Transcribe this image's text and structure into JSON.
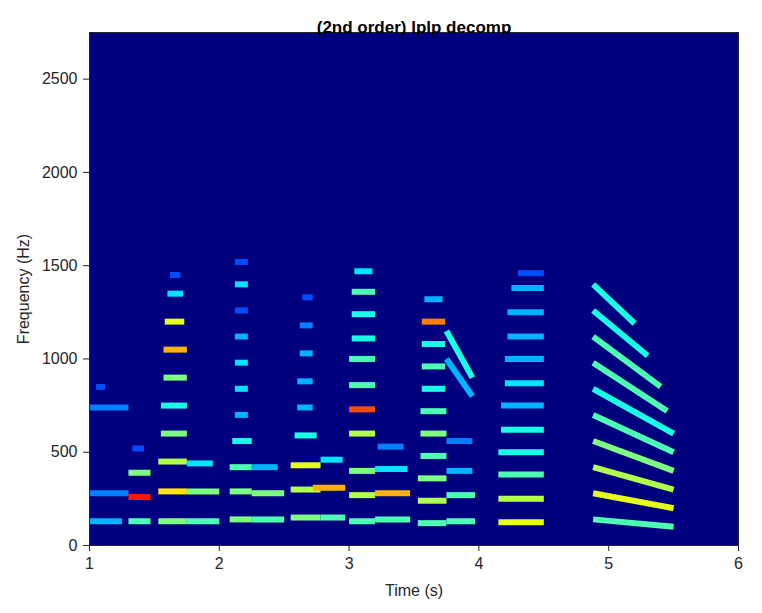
{
  "chart_data": {
    "type": "heatmap",
    "title": "(2nd order) lplp decomp",
    "xlabel": "Time (s)",
    "ylabel": "Frequency (Hz)",
    "xlim": [
      1,
      6
    ],
    "ylim": [
      0,
      2750
    ],
    "xticks": [
      1,
      2,
      3,
      4,
      5,
      6
    ],
    "yticks": [
      0,
      500,
      1000,
      1500,
      2000,
      2500
    ],
    "zlim": [
      0,
      1
    ],
    "grid": false,
    "cells": [
      {
        "t0": 1.0,
        "t1": 1.3,
        "f0": 740,
        "f1": 740,
        "z": 0.25
      },
      {
        "t0": 1.0,
        "t1": 1.25,
        "f0": 130,
        "f1": 130,
        "z": 0.3
      },
      {
        "t0": 1.0,
        "t1": 1.3,
        "f0": 280,
        "f1": 280,
        "z": 0.25
      },
      {
        "t0": 1.05,
        "t1": 1.12,
        "f0": 850,
        "f1": 850,
        "z": 0.2
      },
      {
        "t0": 1.3,
        "t1": 1.47,
        "f0": 130,
        "f1": 130,
        "z": 0.45
      },
      {
        "t0": 1.3,
        "t1": 1.47,
        "f0": 260,
        "f1": 260,
        "z": 0.85
      },
      {
        "t0": 1.3,
        "t1": 1.47,
        "f0": 390,
        "f1": 390,
        "z": 0.5
      },
      {
        "t0": 1.33,
        "t1": 1.42,
        "f0": 520,
        "f1": 520,
        "z": 0.2
      },
      {
        "t0": 1.53,
        "t1": 1.75,
        "f0": 130,
        "f1": 130,
        "z": 0.5
      },
      {
        "t0": 1.53,
        "t1": 1.75,
        "f0": 290,
        "f1": 290,
        "z": 0.65
      },
      {
        "t0": 1.53,
        "t1": 1.75,
        "f0": 450,
        "f1": 450,
        "z": 0.55
      },
      {
        "t0": 1.55,
        "t1": 1.75,
        "f0": 600,
        "f1": 600,
        "z": 0.5
      },
      {
        "t0": 1.55,
        "t1": 1.75,
        "f0": 750,
        "f1": 750,
        "z": 0.4
      },
      {
        "t0": 1.57,
        "t1": 1.75,
        "f0": 900,
        "f1": 900,
        "z": 0.5
      },
      {
        "t0": 1.57,
        "t1": 1.75,
        "f0": 1050,
        "f1": 1050,
        "z": 0.7
      },
      {
        "t0": 1.58,
        "t1": 1.73,
        "f0": 1200,
        "f1": 1200,
        "z": 0.6
      },
      {
        "t0": 1.6,
        "t1": 1.72,
        "f0": 1350,
        "f1": 1350,
        "z": 0.35
      },
      {
        "t0": 1.62,
        "t1": 1.7,
        "f0": 1450,
        "f1": 1450,
        "z": 0.2
      },
      {
        "t0": 1.75,
        "t1": 2.0,
        "f0": 130,
        "f1": 130,
        "z": 0.45
      },
      {
        "t0": 1.75,
        "t1": 2.0,
        "f0": 290,
        "f1": 290,
        "z": 0.5
      },
      {
        "t0": 1.75,
        "t1": 1.95,
        "f0": 440,
        "f1": 440,
        "z": 0.35
      },
      {
        "t0": 2.08,
        "t1": 2.25,
        "f0": 140,
        "f1": 140,
        "z": 0.5
      },
      {
        "t0": 2.08,
        "t1": 2.25,
        "f0": 290,
        "f1": 290,
        "z": 0.5
      },
      {
        "t0": 2.08,
        "t1": 2.25,
        "f0": 420,
        "f1": 420,
        "z": 0.45
      },
      {
        "t0": 2.1,
        "t1": 2.25,
        "f0": 560,
        "f1": 560,
        "z": 0.4
      },
      {
        "t0": 2.12,
        "t1": 2.22,
        "f0": 700,
        "f1": 700,
        "z": 0.3
      },
      {
        "t0": 2.12,
        "t1": 2.22,
        "f0": 840,
        "f1": 840,
        "z": 0.35
      },
      {
        "t0": 2.12,
        "t1": 2.22,
        "f0": 980,
        "f1": 980,
        "z": 0.35
      },
      {
        "t0": 2.12,
        "t1": 2.22,
        "f0": 1120,
        "f1": 1120,
        "z": 0.3
      },
      {
        "t0": 2.12,
        "t1": 2.22,
        "f0": 1260,
        "f1": 1260,
        "z": 0.2
      },
      {
        "t0": 2.12,
        "t1": 2.22,
        "f0": 1400,
        "f1": 1400,
        "z": 0.35
      },
      {
        "t0": 2.12,
        "t1": 2.22,
        "f0": 1520,
        "f1": 1520,
        "z": 0.2
      },
      {
        "t0": 2.25,
        "t1": 2.5,
        "f0": 140,
        "f1": 140,
        "z": 0.45
      },
      {
        "t0": 2.25,
        "t1": 2.5,
        "f0": 280,
        "f1": 280,
        "z": 0.5
      },
      {
        "t0": 2.25,
        "t1": 2.45,
        "f0": 420,
        "f1": 420,
        "z": 0.3
      },
      {
        "t0": 2.55,
        "t1": 2.78,
        "f0": 150,
        "f1": 150,
        "z": 0.5
      },
      {
        "t0": 2.55,
        "t1": 2.78,
        "f0": 300,
        "f1": 300,
        "z": 0.55
      },
      {
        "t0": 2.55,
        "t1": 2.78,
        "f0": 430,
        "f1": 430,
        "z": 0.6
      },
      {
        "t0": 2.58,
        "t1": 2.75,
        "f0": 590,
        "f1": 590,
        "z": 0.4
      },
      {
        "t0": 2.6,
        "t1": 2.72,
        "f0": 740,
        "f1": 740,
        "z": 0.3
      },
      {
        "t0": 2.6,
        "t1": 2.72,
        "f0": 880,
        "f1": 880,
        "z": 0.3
      },
      {
        "t0": 2.62,
        "t1": 2.72,
        "f0": 1030,
        "f1": 1030,
        "z": 0.3
      },
      {
        "t0": 2.62,
        "t1": 2.72,
        "f0": 1180,
        "f1": 1180,
        "z": 0.25
      },
      {
        "t0": 2.64,
        "t1": 2.72,
        "f0": 1330,
        "f1": 1330,
        "z": 0.2
      },
      {
        "t0": 2.78,
        "t1": 2.97,
        "f0": 150,
        "f1": 150,
        "z": 0.45
      },
      {
        "t0": 2.72,
        "t1": 2.97,
        "f0": 310,
        "f1": 310,
        "z": 0.7
      },
      {
        "t0": 2.78,
        "t1": 2.95,
        "f0": 460,
        "f1": 460,
        "z": 0.35
      },
      {
        "t0": 3.0,
        "t1": 3.2,
        "f0": 130,
        "f1": 130,
        "z": 0.45
      },
      {
        "t0": 3.0,
        "t1": 3.2,
        "f0": 270,
        "f1": 270,
        "z": 0.55
      },
      {
        "t0": 3.0,
        "t1": 3.2,
        "f0": 400,
        "f1": 400,
        "z": 0.5
      },
      {
        "t0": 3.0,
        "t1": 3.2,
        "f0": 600,
        "f1": 600,
        "z": 0.55
      },
      {
        "t0": 3.0,
        "t1": 3.2,
        "f0": 730,
        "f1": 730,
        "z": 0.8
      },
      {
        "t0": 3.0,
        "t1": 3.2,
        "f0": 860,
        "f1": 860,
        "z": 0.45
      },
      {
        "t0": 3.0,
        "t1": 3.2,
        "f0": 1000,
        "f1": 1000,
        "z": 0.45
      },
      {
        "t0": 3.02,
        "t1": 3.2,
        "f0": 1110,
        "f1": 1110,
        "z": 0.4
      },
      {
        "t0": 3.02,
        "t1": 3.2,
        "f0": 1240,
        "f1": 1240,
        "z": 0.4
      },
      {
        "t0": 3.02,
        "t1": 3.2,
        "f0": 1360,
        "f1": 1360,
        "z": 0.45
      },
      {
        "t0": 3.04,
        "t1": 3.18,
        "f0": 1470,
        "f1": 1470,
        "z": 0.35
      },
      {
        "t0": 3.2,
        "t1": 3.47,
        "f0": 140,
        "f1": 140,
        "z": 0.45
      },
      {
        "t0": 3.2,
        "t1": 3.47,
        "f0": 280,
        "f1": 280,
        "z": 0.7
      },
      {
        "t0": 3.2,
        "t1": 3.45,
        "f0": 410,
        "f1": 410,
        "z": 0.35
      },
      {
        "t0": 3.22,
        "t1": 3.42,
        "f0": 530,
        "f1": 530,
        "z": 0.25
      },
      {
        "t0": 3.53,
        "t1": 3.75,
        "f0": 120,
        "f1": 120,
        "z": 0.45
      },
      {
        "t0": 3.53,
        "t1": 3.75,
        "f0": 240,
        "f1": 240,
        "z": 0.55
      },
      {
        "t0": 3.53,
        "t1": 3.75,
        "f0": 360,
        "f1": 360,
        "z": 0.5
      },
      {
        "t0": 3.55,
        "t1": 3.75,
        "f0": 480,
        "f1": 480,
        "z": 0.45
      },
      {
        "t0": 3.55,
        "t1": 3.75,
        "f0": 600,
        "f1": 600,
        "z": 0.5
      },
      {
        "t0": 3.55,
        "t1": 3.75,
        "f0": 720,
        "f1": 720,
        "z": 0.45
      },
      {
        "t0": 3.56,
        "t1": 3.74,
        "f0": 840,
        "f1": 840,
        "z": 0.4
      },
      {
        "t0": 3.56,
        "t1": 3.74,
        "f0": 960,
        "f1": 960,
        "z": 0.45
      },
      {
        "t0": 3.56,
        "t1": 3.74,
        "f0": 1080,
        "f1": 1080,
        "z": 0.4
      },
      {
        "t0": 3.56,
        "t1": 3.74,
        "f0": 1200,
        "f1": 1200,
        "z": 0.75
      },
      {
        "t0": 3.58,
        "t1": 3.72,
        "f0": 1320,
        "f1": 1320,
        "z": 0.3
      },
      {
        "t0": 3.75,
        "t1": 3.97,
        "f0": 130,
        "f1": 130,
        "z": 0.45
      },
      {
        "t0": 3.75,
        "t1": 3.97,
        "f0": 270,
        "f1": 270,
        "z": 0.45
      },
      {
        "t0": 3.75,
        "t1": 3.95,
        "f0": 400,
        "f1": 400,
        "z": 0.3
      },
      {
        "t0": 3.75,
        "t1": 3.95,
        "f0": 560,
        "f1": 560,
        "z": 0.25
      },
      {
        "t0": 3.75,
        "t1": 3.95,
        "f0": 1150,
        "f1": 900,
        "z": 0.4
      },
      {
        "t0": 3.75,
        "t1": 3.95,
        "f0": 1000,
        "f1": 800,
        "z": 0.3
      },
      {
        "t0": 4.15,
        "t1": 4.5,
        "f0": 125,
        "f1": 125,
        "z": 0.6
      },
      {
        "t0": 4.15,
        "t1": 4.5,
        "f0": 250,
        "f1": 250,
        "z": 0.55
      },
      {
        "t0": 4.15,
        "t1": 4.5,
        "f0": 380,
        "f1": 380,
        "z": 0.45
      },
      {
        "t0": 4.15,
        "t1": 4.5,
        "f0": 500,
        "f1": 500,
        "z": 0.4
      },
      {
        "t0": 4.17,
        "t1": 4.5,
        "f0": 620,
        "f1": 620,
        "z": 0.4
      },
      {
        "t0": 4.17,
        "t1": 4.5,
        "f0": 750,
        "f1": 750,
        "z": 0.3
      },
      {
        "t0": 4.2,
        "t1": 4.5,
        "f0": 870,
        "f1": 870,
        "z": 0.35
      },
      {
        "t0": 4.2,
        "t1": 4.5,
        "f0": 1000,
        "f1": 1000,
        "z": 0.3
      },
      {
        "t0": 4.22,
        "t1": 4.5,
        "f0": 1120,
        "f1": 1120,
        "z": 0.3
      },
      {
        "t0": 4.22,
        "t1": 4.5,
        "f0": 1250,
        "f1": 1250,
        "z": 0.3
      },
      {
        "t0": 4.25,
        "t1": 4.5,
        "f0": 1380,
        "f1": 1380,
        "z": 0.3
      },
      {
        "t0": 4.3,
        "t1": 4.5,
        "f0": 1460,
        "f1": 1460,
        "z": 0.2
      },
      {
        "t0": 4.88,
        "t1": 5.5,
        "f0": 140,
        "f1": 100,
        "z": 0.45
      },
      {
        "t0": 4.88,
        "t1": 5.5,
        "f0": 280,
        "f1": 200,
        "z": 0.6
      },
      {
        "t0": 4.88,
        "t1": 5.5,
        "f0": 420,
        "f1": 300,
        "z": 0.55
      },
      {
        "t0": 4.88,
        "t1": 5.5,
        "f0": 560,
        "f1": 400,
        "z": 0.5
      },
      {
        "t0": 4.88,
        "t1": 5.5,
        "f0": 700,
        "f1": 500,
        "z": 0.45
      },
      {
        "t0": 4.88,
        "t1": 5.5,
        "f0": 840,
        "f1": 600,
        "z": 0.4
      },
      {
        "t0": 4.88,
        "t1": 5.45,
        "f0": 980,
        "f1": 721,
        "z": 0.45
      },
      {
        "t0": 4.88,
        "t1": 5.4,
        "f0": 1120,
        "f1": 852,
        "z": 0.45
      },
      {
        "t0": 4.88,
        "t1": 5.3,
        "f0": 1260,
        "f1": 1017,
        "z": 0.4
      },
      {
        "t0": 4.88,
        "t1": 5.2,
        "f0": 1400,
        "f1": 1190,
        "z": 0.4
      }
    ]
  }
}
